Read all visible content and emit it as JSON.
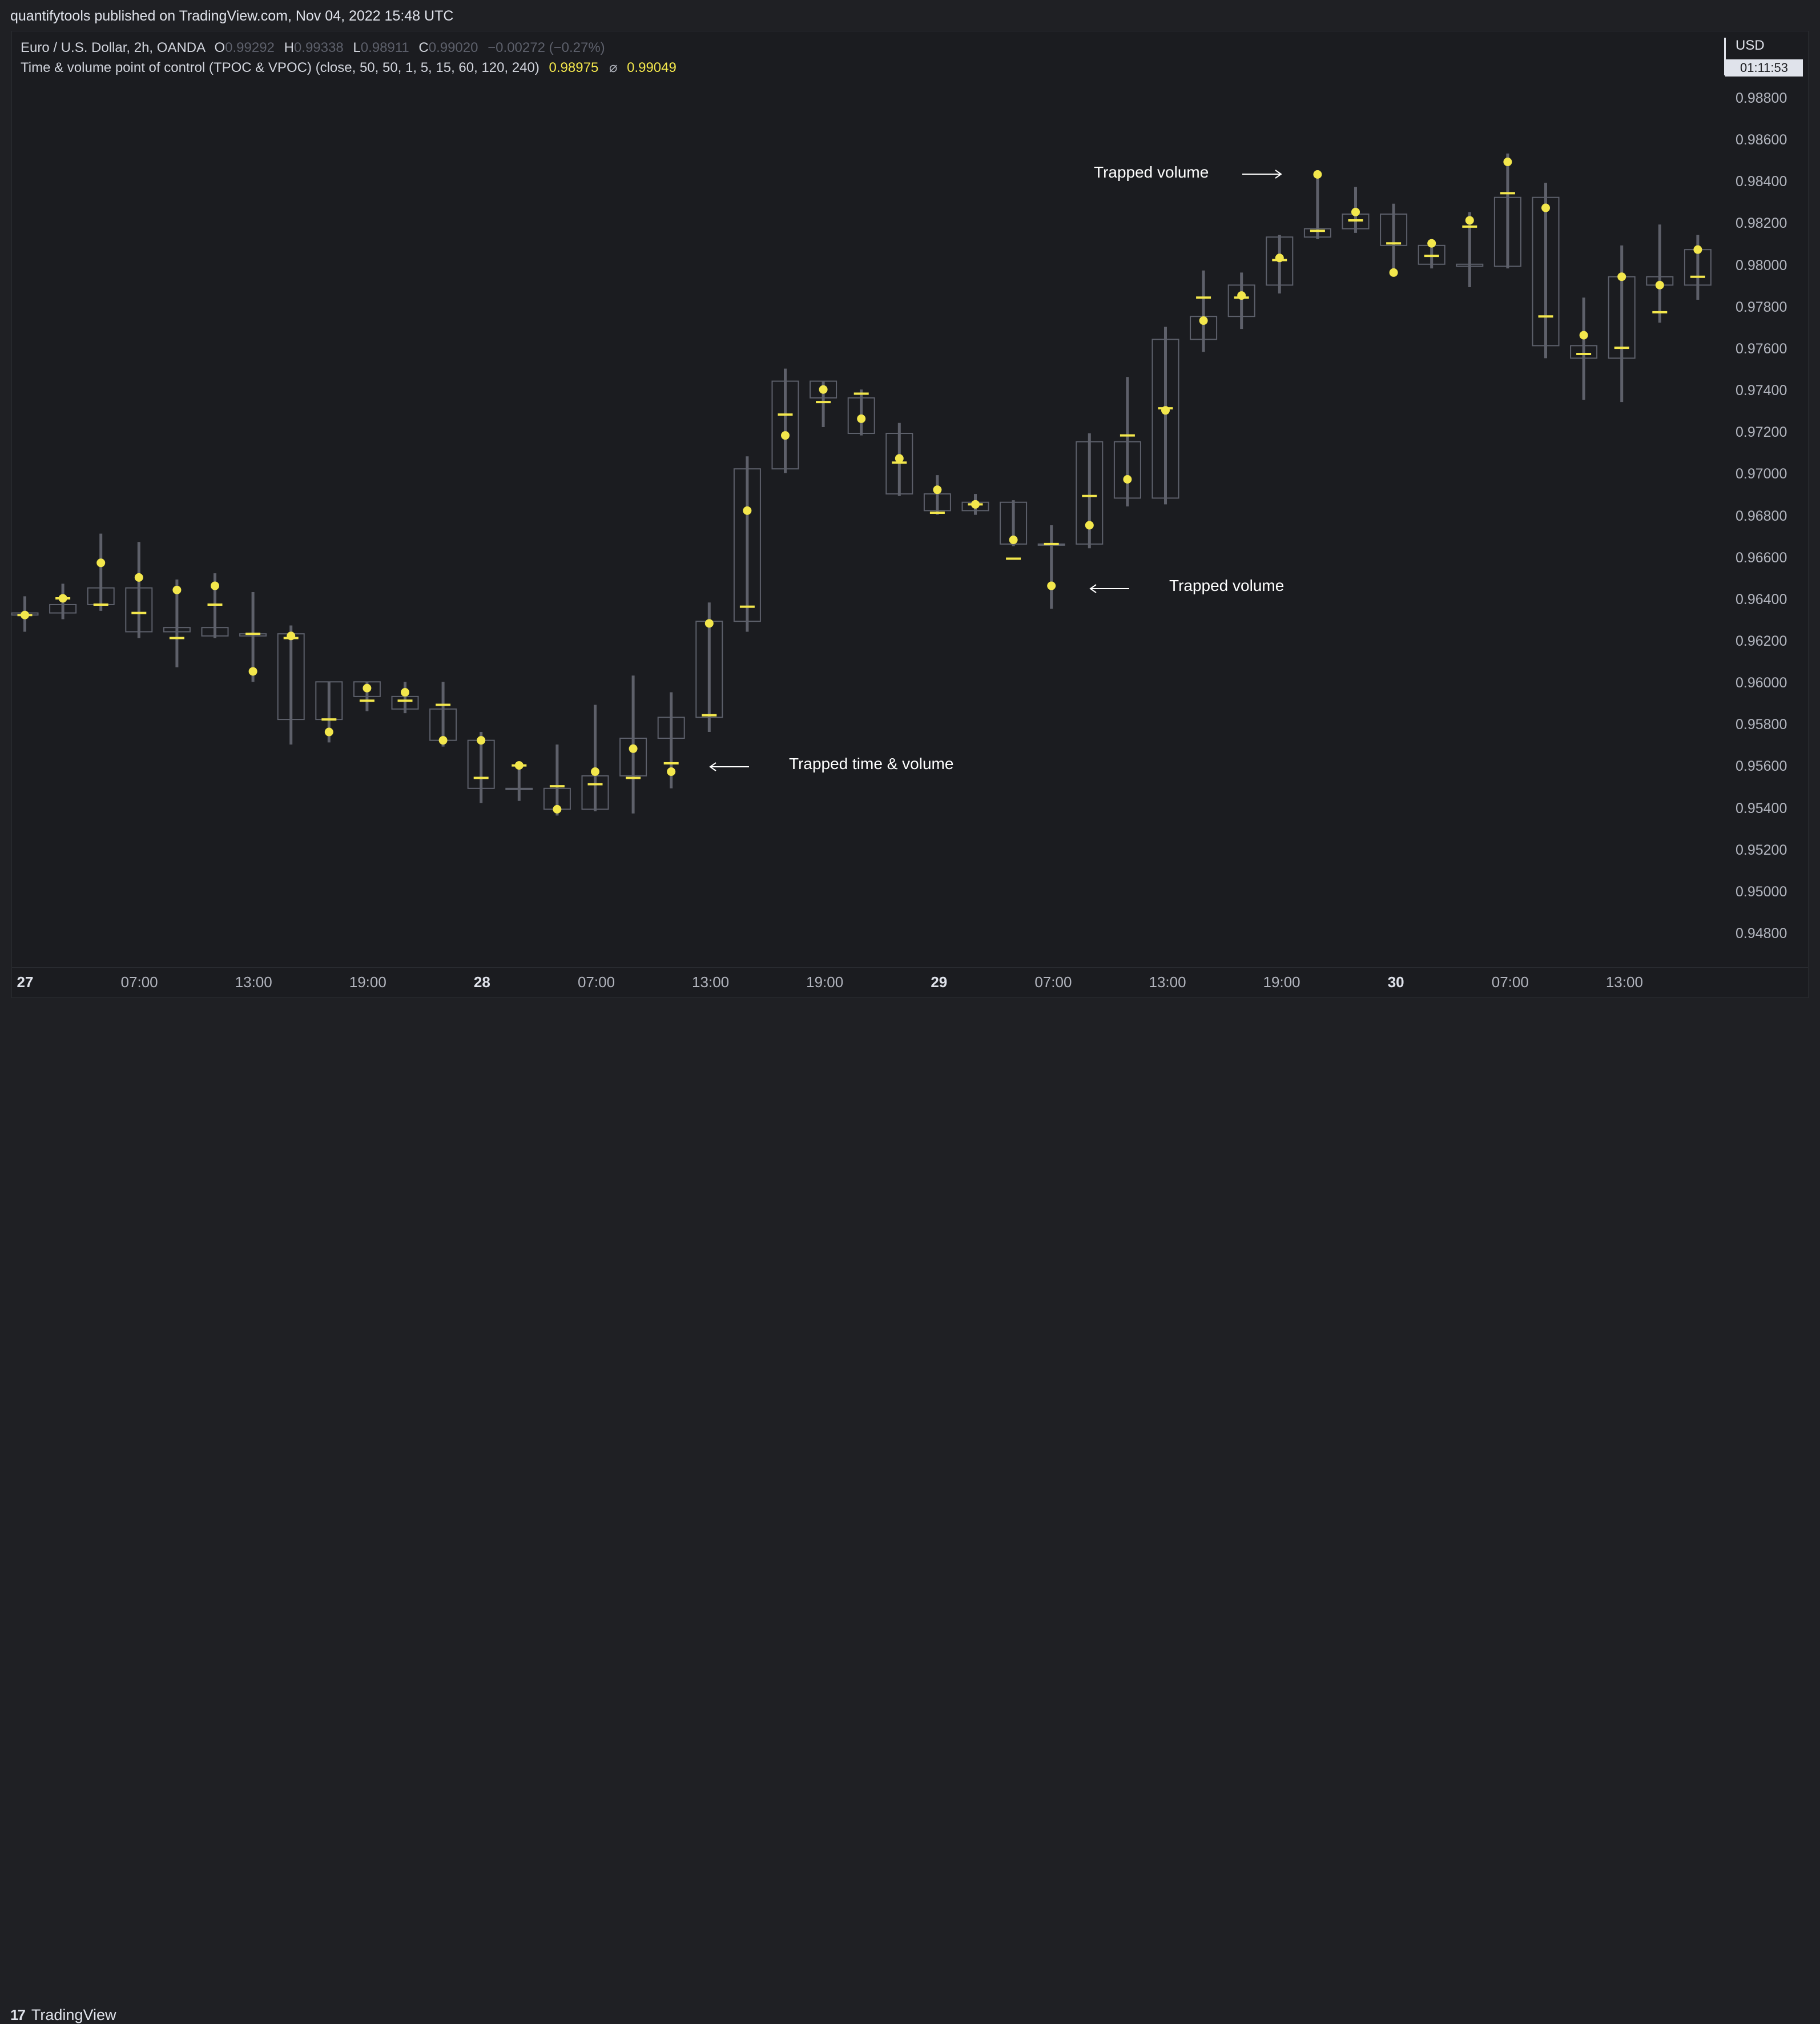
{
  "header": {
    "published": "quantifytools published on TradingView.com, Nov 04, 2022 15:48 UTC"
  },
  "legend": {
    "symbol": "Euro / U.S. Dollar, 2h, OANDA",
    "o_label": "O",
    "o_value": "0.99292",
    "h_label": "H",
    "h_value": "0.99338",
    "l_label": "L",
    "l_value": "0.98911",
    "c_label": "C",
    "c_value": "0.99020",
    "change": "−0.00272 (−0.27%)",
    "indicator": "Time & volume point of control (TPOC & VPOC) (close, 50, 50, 1, 5, 15, 60, 120, 240)",
    "ind_value1": "0.98975",
    "ind_symbol": "⌀",
    "ind_value2": "0.99049"
  },
  "price_axis": {
    "currency": "USD",
    "countdown": "01:11:53",
    "labels": [
      "0.98800",
      "0.98600",
      "0.98400",
      "0.98200",
      "0.98000",
      "0.97800",
      "0.97600",
      "0.97400",
      "0.97200",
      "0.97000",
      "0.96800",
      "0.96600",
      "0.96400",
      "0.96200",
      "0.96000",
      "0.95800",
      "0.95600",
      "0.95400",
      "0.95200",
      "0.95000",
      "0.94800"
    ]
  },
  "time_axis": {
    "labels": [
      {
        "text": "27",
        "bold": true
      },
      {
        "text": "07:00",
        "bold": false
      },
      {
        "text": "13:00",
        "bold": false
      },
      {
        "text": "19:00",
        "bold": false
      },
      {
        "text": "28",
        "bold": true
      },
      {
        "text": "07:00",
        "bold": false
      },
      {
        "text": "13:00",
        "bold": false
      },
      {
        "text": "19:00",
        "bold": false
      },
      {
        "text": "29",
        "bold": true
      },
      {
        "text": "07:00",
        "bold": false
      },
      {
        "text": "13:00",
        "bold": false
      },
      {
        "text": "19:00",
        "bold": false
      },
      {
        "text": "30",
        "bold": true
      },
      {
        "text": "07:00",
        "bold": false
      },
      {
        "text": "13:00",
        "bold": false
      }
    ]
  },
  "annotations": {
    "trapped_volume_top": "Trapped volume",
    "trapped_volume_mid": "Trapped volume",
    "trapped_time_volume": "Trapped time & volume"
  },
  "footer": {
    "brand": "TradingView",
    "logo": "17"
  },
  "colors": {
    "background": "#1b1c20",
    "candle_outline": "#5d606b",
    "wick": "#6a6d78",
    "poc_yellow": "#f3e74c",
    "annotation": "#ffffff"
  },
  "chart_data": {
    "type": "candlestick",
    "symbol": "EURUSD",
    "interval": "2h",
    "ylim": [
      0.9472,
      0.989
    ],
    "x_start": "Oct 27 00:00",
    "candles": [
      {
        "t": "27 01:00",
        "o": 0.96335,
        "h": 0.96415,
        "l": 0.96245,
        "c": 0.96325,
        "tpoc": 0.96325,
        "vpoc": 0.96325
      },
      {
        "t": "27 03:00",
        "o": 0.96335,
        "h": 0.96475,
        "l": 0.96305,
        "c": 0.96375,
        "tpoc": 0.96405,
        "vpoc": 0.96405
      },
      {
        "t": "27 05:00",
        "o": 0.96375,
        "h": 0.96715,
        "l": 0.96345,
        "c": 0.96455,
        "tpoc": 0.96375,
        "vpoc": 0.96575
      },
      {
        "t": "27 07:00",
        "o": 0.96455,
        "h": 0.96675,
        "l": 0.96215,
        "c": 0.96245,
        "tpoc": 0.96335,
        "vpoc": 0.96505
      },
      {
        "t": "27 09:00",
        "o": 0.96245,
        "h": 0.96495,
        "l": 0.96075,
        "c": 0.96265,
        "tpoc": 0.96215,
        "vpoc": 0.96445
      },
      {
        "t": "27 11:00",
        "o": 0.96265,
        "h": 0.96525,
        "l": 0.96215,
        "c": 0.96225,
        "tpoc": 0.96375,
        "vpoc": 0.96465
      },
      {
        "t": "27 13:00",
        "o": 0.96225,
        "h": 0.96435,
        "l": 0.96005,
        "c": 0.96235,
        "tpoc": 0.96235,
        "vpoc": 0.96055
      },
      {
        "t": "27 15:00",
        "o": 0.96235,
        "h": 0.96275,
        "l": 0.95705,
        "c": 0.95825,
        "tpoc": 0.96215,
        "vpoc": 0.96225
      },
      {
        "t": "27 17:00",
        "o": 0.95825,
        "h": 0.96005,
        "l": 0.95715,
        "c": 0.96005,
        "tpoc": 0.95825,
        "vpoc": 0.95765
      },
      {
        "t": "27 19:00",
        "o": 0.96005,
        "h": 0.96005,
        "l": 0.95865,
        "c": 0.95935,
        "tpoc": 0.95915,
        "vpoc": 0.95975
      },
      {
        "t": "27 21:00",
        "o": 0.95935,
        "h": 0.96005,
        "l": 0.95855,
        "c": 0.95875,
        "tpoc": 0.95915,
        "vpoc": 0.95955
      },
      {
        "t": "27 23:00",
        "o": 0.95875,
        "h": 0.96005,
        "l": 0.95695,
        "c": 0.95725,
        "tpoc": 0.95895,
        "vpoc": 0.95725
      },
      {
        "t": "28 01:00",
        "o": 0.95725,
        "h": 0.95765,
        "l": 0.95425,
        "c": 0.95495,
        "tpoc": 0.95545,
        "vpoc": 0.95725
      },
      {
        "t": "28 03:00",
        "o": 0.95495,
        "h": 0.95625,
        "l": 0.95435,
        "c": 0.95495,
        "tpoc": 0.95605,
        "vpoc": 0.95605
      },
      {
        "t": "28 05:00",
        "o": 0.95495,
        "h": 0.95705,
        "l": 0.95365,
        "c": 0.95395,
        "tpoc": 0.95505,
        "vpoc": 0.95395
      },
      {
        "t": "28 07:00",
        "o": 0.95395,
        "h": 0.95895,
        "l": 0.95385,
        "c": 0.95555,
        "tpoc": 0.95515,
        "vpoc": 0.95575
      },
      {
        "t": "28 09:00",
        "o": 0.95555,
        "h": 0.96035,
        "l": 0.95375,
        "c": 0.95735,
        "tpoc": 0.95545,
        "vpoc": 0.95685
      },
      {
        "t": "28 11:00",
        "o": 0.95735,
        "h": 0.95955,
        "l": 0.95495,
        "c": 0.95835,
        "tpoc": 0.95615,
        "vpoc": 0.95575
      },
      {
        "t": "28 13:00",
        "o": 0.95835,
        "h": 0.96385,
        "l": 0.95765,
        "c": 0.96295,
        "tpoc": 0.95845,
        "vpoc": 0.96285
      },
      {
        "t": "28 15:00",
        "o": 0.96295,
        "h": 0.97085,
        "l": 0.96245,
        "c": 0.97025,
        "tpoc": 0.96365,
        "vpoc": 0.96825
      },
      {
        "t": "28 17:00",
        "o": 0.97025,
        "h": 0.97505,
        "l": 0.97005,
        "c": 0.97445,
        "tpoc": 0.97285,
        "vpoc": 0.97185
      },
      {
        "t": "28 19:00",
        "o": 0.97445,
        "h": 0.97445,
        "l": 0.97225,
        "c": 0.97365,
        "tpoc": 0.97345,
        "vpoc": 0.97405
      },
      {
        "t": "28 21:00",
        "o": 0.97365,
        "h": 0.97405,
        "l": 0.97185,
        "c": 0.97195,
        "tpoc": 0.97385,
        "vpoc": 0.97265
      },
      {
        "t": "28 23:00",
        "o": 0.97195,
        "h": 0.97245,
        "l": 0.96895,
        "c": 0.96905,
        "tpoc": 0.97055,
        "vpoc": 0.97075
      },
      {
        "t": "29 01:00",
        "o": 0.96905,
        "h": 0.96995,
        "l": 0.96805,
        "c": 0.96825,
        "tpoc": 0.96815,
        "vpoc": 0.96925
      },
      {
        "t": "29 03:00",
        "o": 0.96825,
        "h": 0.96905,
        "l": 0.96805,
        "c": 0.96865,
        "tpoc": 0.96855,
        "vpoc": 0.96855
      },
      {
        "t": "29 05:00",
        "o": 0.96865,
        "h": 0.96875,
        "l": 0.96655,
        "c": 0.96665,
        "tpoc": 0.96595,
        "vpoc": 0.96685
      },
      {
        "t": "29 07:00",
        "o": 0.96665,
        "h": 0.96755,
        "l": 0.96355,
        "c": 0.96665,
        "tpoc": 0.96665,
        "vpoc": 0.96465
      },
      {
        "t": "29 09:00",
        "o": 0.96665,
        "h": 0.97195,
        "l": 0.96645,
        "c": 0.97155,
        "tpoc": 0.96895,
        "vpoc": 0.96755
      },
      {
        "t": "29 11:00",
        "o": 0.97155,
        "h": 0.97465,
        "l": 0.96845,
        "c": 0.96885,
        "tpoc": 0.97185,
        "vpoc": 0.96975
      },
      {
        "t": "29 13:00",
        "o": 0.96885,
        "h": 0.97705,
        "l": 0.96855,
        "c": 0.97645,
        "tpoc": 0.97315,
        "vpoc": 0.97305
      },
      {
        "t": "29 15:00",
        "o": 0.97645,
        "h": 0.97975,
        "l": 0.97585,
        "c": 0.97755,
        "tpoc": 0.97845,
        "vpoc": 0.97735
      },
      {
        "t": "29 17:00",
        "o": 0.97755,
        "h": 0.97965,
        "l": 0.97695,
        "c": 0.97905,
        "tpoc": 0.97845,
        "vpoc": 0.97855
      },
      {
        "t": "29 19:00",
        "o": 0.97905,
        "h": 0.98145,
        "l": 0.97865,
        "c": 0.98135,
        "tpoc": 0.98025,
        "vpoc": 0.98035
      },
      {
        "t": "29 21:00",
        "o": 0.98135,
        "h": 0.98455,
        "l": 0.98125,
        "c": 0.98175,
        "tpoc": 0.98165,
        "vpoc": 0.98435
      },
      {
        "t": "29 23:00",
        "o": 0.98175,
        "h": 0.98375,
        "l": 0.98155,
        "c": 0.98245,
        "tpoc": 0.98215,
        "vpoc": 0.98255
      },
      {
        "t": "30 01:00",
        "o": 0.98245,
        "h": 0.98295,
        "l": 0.97955,
        "c": 0.98095,
        "tpoc": 0.98105,
        "vpoc": 0.97965
      },
      {
        "t": "30 03:00",
        "o": 0.98095,
        "h": 0.98115,
        "l": 0.97985,
        "c": 0.98005,
        "tpoc": 0.98045,
        "vpoc": 0.98105
      },
      {
        "t": "30 05:00",
        "o": 0.98005,
        "h": 0.98255,
        "l": 0.97895,
        "c": 0.97995,
        "tpoc": 0.98185,
        "vpoc": 0.98215
      },
      {
        "t": "30 07:00",
        "o": 0.97995,
        "h": 0.98535,
        "l": 0.97985,
        "c": 0.98325,
        "tpoc": 0.98345,
        "vpoc": 0.98495
      },
      {
        "t": "30 09:00",
        "o": 0.98325,
        "h": 0.98395,
        "l": 0.97555,
        "c": 0.97615,
        "tpoc": 0.97755,
        "vpoc": 0.98275
      },
      {
        "t": "30 11:00",
        "o": 0.97615,
        "h": 0.97845,
        "l": 0.97355,
        "c": 0.97555,
        "tpoc": 0.97575,
        "vpoc": 0.97665
      },
      {
        "t": "30 13:00",
        "o": 0.97555,
        "h": 0.98095,
        "l": 0.97345,
        "c": 0.97945,
        "tpoc": 0.97605,
        "vpoc": 0.97945
      },
      {
        "t": "30 15:00",
        "o": 0.97945,
        "h": 0.98195,
        "l": 0.97725,
        "c": 0.97905,
        "tpoc": 0.97775,
        "vpoc": 0.97905
      },
      {
        "t": "30 17:00",
        "o": 0.97905,
        "h": 0.98145,
        "l": 0.97835,
        "c": 0.98075,
        "tpoc": 0.97945,
        "vpoc": 0.98075
      }
    ]
  }
}
